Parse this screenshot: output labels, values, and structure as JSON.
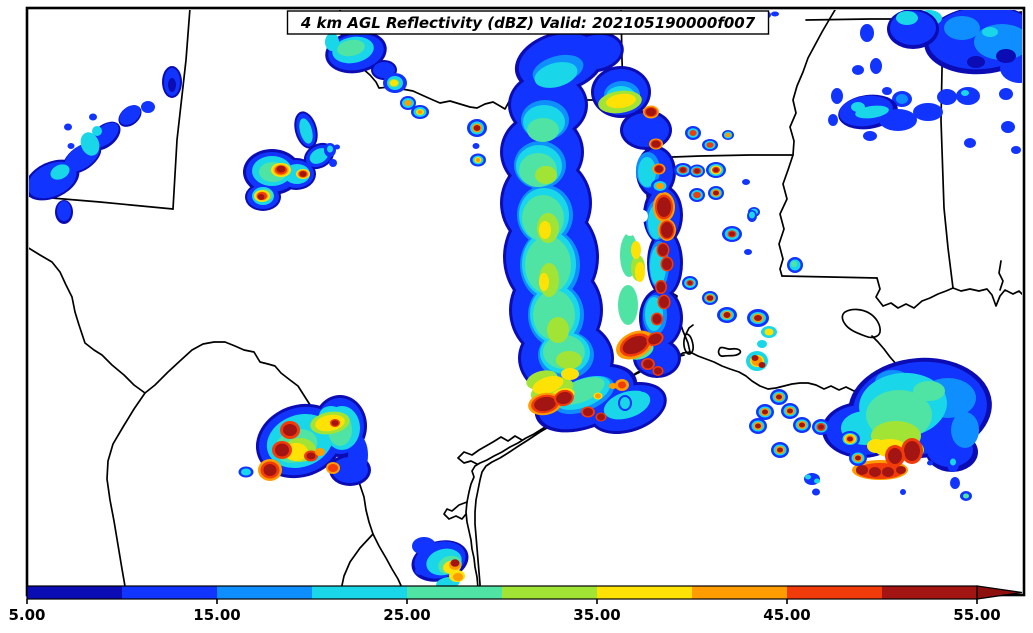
{
  "title": {
    "text": "4 km AGL Reflectivity (dBZ) Valid: 202105190000f007"
  },
  "colorbar": {
    "unit": "dBZ",
    "min": 5,
    "max": 55,
    "interval": 5,
    "tick_values": [
      5,
      15,
      25,
      35,
      45,
      55
    ],
    "tick_labels": [
      "5.00",
      "15.00",
      "25.00",
      "35.00",
      "45.00",
      "55.00"
    ],
    "segments": [
      {
        "from": 5,
        "to": 10,
        "color": "#0c0cb4"
      },
      {
        "from": 10,
        "to": 15,
        "color": "#1134ff"
      },
      {
        "from": 15,
        "to": 20,
        "color": "#0f8fff"
      },
      {
        "from": 20,
        "to": 25,
        "color": "#19d7e8"
      },
      {
        "from": 25,
        "to": 30,
        "color": "#4fe3a4"
      },
      {
        "from": 30,
        "to": 35,
        "color": "#a2e436"
      },
      {
        "from": 35,
        "to": 40,
        "color": "#ffe205"
      },
      {
        "from": 40,
        "to": 45,
        "color": "#ff9c00"
      },
      {
        "from": 45,
        "to": 50,
        "color": "#f23b0a"
      },
      {
        "from": 50,
        "to": 55,
        "color": "#a31512"
      }
    ],
    "arrow_color": "#8e100e"
  },
  "map": {
    "background_color": "#ffffff",
    "boundary_color": "#000000"
  }
}
